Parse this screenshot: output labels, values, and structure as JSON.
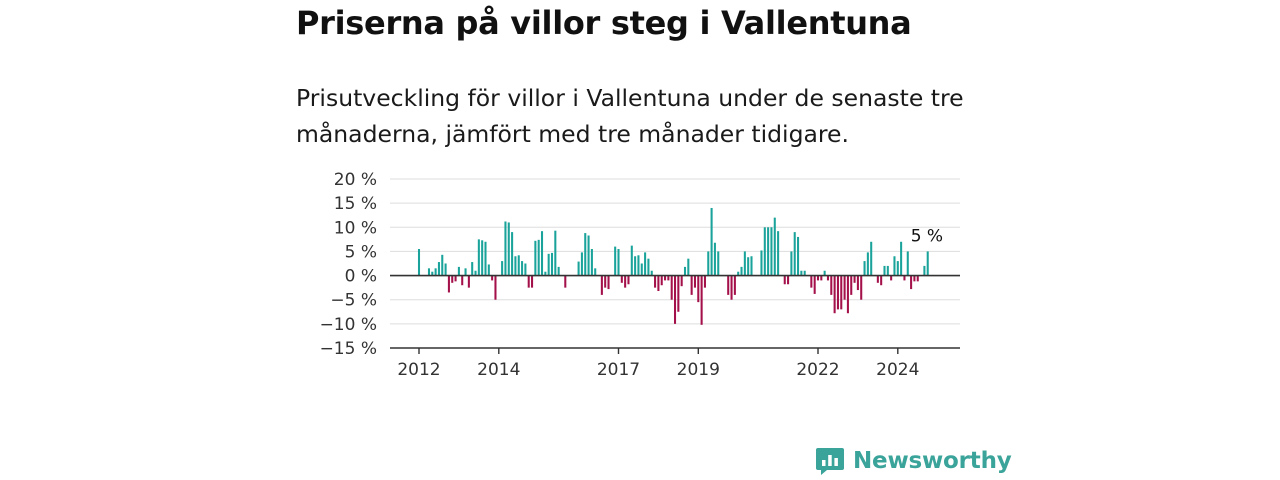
{
  "title": "Priserna på villor steg i Vallentuna",
  "subtitle": "Prisutveckling för villor i Vallentuna under de senaste tre månaderna, jämfört med tre månader tidigare.",
  "brand": {
    "name": "Newsworthy",
    "logo_icon": "bar-chart-speech-bubble-icon"
  },
  "colors": {
    "positive": "#1aa39a",
    "negative": "#a3104a",
    "axis": "#333333",
    "grid": "#dddddd",
    "brand": "#3aa39a"
  },
  "chart_data": {
    "type": "bar",
    "start": "2012-01",
    "ylim": [
      -15,
      20
    ],
    "yticks": [
      {
        "value": 20,
        "label": "20 %"
      },
      {
        "value": 15,
        "label": "15 %"
      },
      {
        "value": 10,
        "label": "10 %"
      },
      {
        "value": 5,
        "label": "5 %"
      },
      {
        "value": 0,
        "label": "0 %"
      },
      {
        "value": -5,
        "label": "−5 %"
      },
      {
        "value": -10,
        "label": "−10 %"
      },
      {
        "value": -15,
        "label": "−15 %"
      }
    ],
    "xticks": [
      "2012",
      "2014",
      "2017",
      "2019",
      "2022",
      "2024"
    ],
    "grid": true,
    "last_value_label": "5 %",
    "values": [
      5.5,
      0,
      0,
      1.5,
      0.8,
      1.5,
      2.8,
      4.3,
      2.5,
      -3.5,
      -1.5,
      -1.2,
      1.8,
      -2.0,
      1.5,
      -2.5,
      2.8,
      1.0,
      7.5,
      7.3,
      7.0,
      2.3,
      -1.0,
      -5.0,
      0,
      3.0,
      11.2,
      11.0,
      9.0,
      4.0,
      4.2,
      3.0,
      2.5,
      -2.5,
      -2.5,
      7.2,
      7.4,
      9.2,
      0.8,
      4.5,
      4.7,
      9.3,
      1.8,
      0,
      -2.5,
      0,
      0,
      0,
      2.9,
      4.8,
      8.8,
      8.3,
      5.5,
      1.5,
      0,
      -4.0,
      -2.5,
      -2.8,
      0,
      6.0,
      5.5,
      -1.5,
      -2.5,
      -1.8,
      6.2,
      4.0,
      4.2,
      2.5,
      4.8,
      3.5,
      1.0,
      -2.5,
      -3.2,
      -2.0,
      -1.0,
      -1.0,
      -5.0,
      -10.0,
      -7.5,
      -2.2,
      1.8,
      3.5,
      -4.0,
      -2.5,
      -5.5,
      -10.2,
      -2.5,
      5.0,
      14.0,
      6.8,
      5.0,
      0,
      0,
      -4.0,
      -5.0,
      -4.0,
      0.8,
      1.8,
      5.0,
      3.8,
      4.0,
      0,
      0,
      5.2,
      10.0,
      10.0,
      10.0,
      12.0,
      9.2,
      0,
      -1.8,
      -1.8,
      5.0,
      9.0,
      8.0,
      1.0,
      1.0,
      0,
      -2.5,
      -3.8,
      -1.0,
      -1.0,
      1.0,
      -1.0,
      -4.0,
      -7.8,
      -7.0,
      -7.0,
      -5.0,
      -7.8,
      -4.0,
      -1.5,
      -3.0,
      -5.0,
      3.0,
      4.8,
      7.0,
      0,
      -1.5,
      -2.0,
      2.0,
      2.0,
      -1.0,
      4.0,
      3.0,
      7.0,
      -1.0,
      5.0,
      -2.8,
      -1.2,
      -1.2,
      0,
      2.0,
      5.0
    ]
  }
}
